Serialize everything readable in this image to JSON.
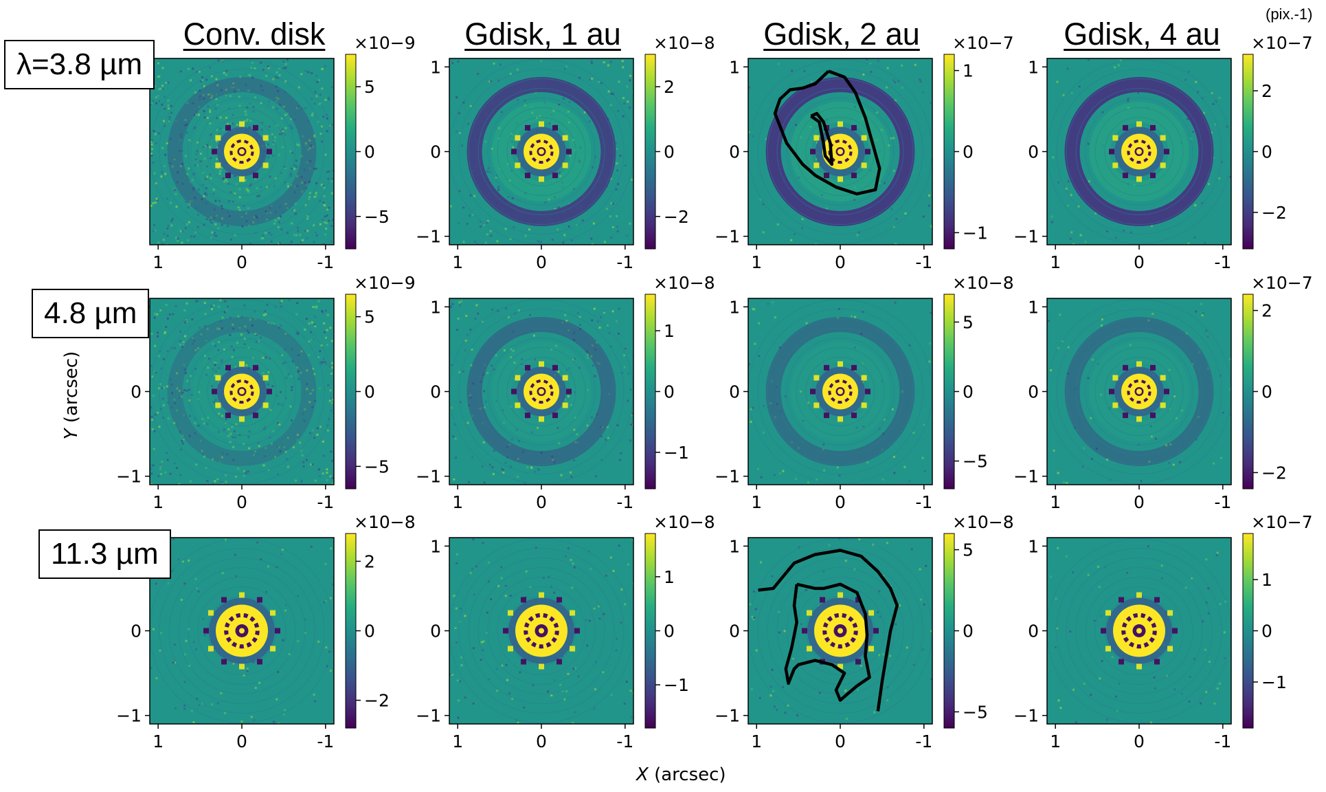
{
  "figure": {
    "unit_label": "(pix.-1)",
    "row_labels": [
      "λ=3.8 µm",
      "4.8 µm",
      "11.3 µm"
    ],
    "column_titles": [
      "Conv. disk",
      "Gdisk, 1 au",
      "Gdisk, 2 au",
      "Gdisk, 4 au"
    ],
    "xlabel_var": "X",
    "xlabel_unit": "(arcsec)",
    "ylabel_var": "Y",
    "ylabel_unit": "(arcsec)"
  },
  "colors": {
    "colormap": "viridis",
    "contour": "#000000"
  },
  "chart_data": [
    {
      "type": "heatmap",
      "row": 0,
      "col": 0,
      "xlim": [
        1.1,
        -1.1
      ],
      "ylim": [
        -1.1,
        1.1
      ],
      "x_ticks": [
        "1",
        "0",
        "-1"
      ],
      "y_ticks": [],
      "cb_exponent": "×10−9",
      "cb_ticks": [
        {
          "v": 5,
          "l": "5"
        },
        {
          "v": 0,
          "l": "0"
        },
        {
          "v": -5,
          "l": "−5"
        }
      ],
      "cb_range": [
        -7.5,
        7.5
      ],
      "ring_strength": 0.35,
      "noise": 0.9,
      "contour": false
    },
    {
      "type": "heatmap",
      "row": 0,
      "col": 1,
      "xlim": [
        1.1,
        -1.1
      ],
      "ylim": [
        -1.1,
        1.1
      ],
      "x_ticks": [
        "1",
        "0",
        "-1"
      ],
      "y_ticks": [
        "1",
        "0",
        "-1"
      ],
      "cb_exponent": "×10−8",
      "cb_ticks": [
        {
          "v": 2,
          "l": "2"
        },
        {
          "v": 0,
          "l": "0"
        },
        {
          "v": -2,
          "l": "−2"
        }
      ],
      "cb_range": [
        -3,
        3
      ],
      "ring_strength": 0.9,
      "noise": 0.35,
      "contour": false
    },
    {
      "type": "heatmap",
      "row": 0,
      "col": 2,
      "xlim": [
        1.1,
        -1.1
      ],
      "ylim": [
        -1.1,
        1.1
      ],
      "x_ticks": [
        "1",
        "0",
        "-1"
      ],
      "y_ticks": [
        "1",
        "0",
        "-1"
      ],
      "cb_exponent": "×10−7",
      "cb_ticks": [
        {
          "v": 1,
          "l": "1"
        },
        {
          "v": 0,
          "l": "0"
        },
        {
          "v": -1,
          "l": "−1"
        }
      ],
      "cb_range": [
        -1.2,
        1.2
      ],
      "ring_strength": 1.0,
      "noise": 0.15,
      "contour": true,
      "contour_paths": [
        [
          [
            0.14,
            0.95
          ],
          [
            0.3,
            0.8
          ],
          [
            0.45,
            0.75
          ],
          [
            0.6,
            0.73
          ],
          [
            0.72,
            0.62
          ],
          [
            0.78,
            0.45
          ],
          [
            0.72,
            0.3
          ],
          [
            0.64,
            0.1
          ],
          [
            0.45,
            -0.15
          ],
          [
            0.3,
            -0.28
          ],
          [
            0.05,
            -0.42
          ],
          [
            -0.2,
            -0.5
          ],
          [
            -0.42,
            -0.45
          ],
          [
            -0.47,
            -0.2
          ],
          [
            -0.4,
            0.05
          ],
          [
            -0.3,
            0.4
          ],
          [
            -0.18,
            0.7
          ],
          [
            -0.05,
            0.88
          ],
          [
            0.14,
            0.95
          ]
        ],
        [
          [
            0.35,
            0.42
          ],
          [
            0.25,
            0.35
          ],
          [
            0.2,
            0.1
          ],
          [
            0.18,
            -0.05
          ],
          [
            0.1,
            -0.15
          ],
          [
            0.12,
            0.1
          ],
          [
            0.2,
            0.35
          ],
          [
            0.28,
            0.45
          ],
          [
            0.35,
            0.42
          ]
        ]
      ]
    },
    {
      "type": "heatmap",
      "row": 0,
      "col": 3,
      "xlim": [
        1.1,
        -1.1
      ],
      "ylim": [
        -1.1,
        1.1
      ],
      "x_ticks": [
        "1",
        "0",
        "-1"
      ],
      "y_ticks": [
        "1",
        "0",
        "-1"
      ],
      "cb_exponent": "×10−7",
      "cb_ticks": [
        {
          "v": 2,
          "l": "2"
        },
        {
          "v": 0,
          "l": "0"
        },
        {
          "v": -2,
          "l": "−2"
        }
      ],
      "cb_range": [
        -3.2,
        3.2
      ],
      "ring_strength": 1.0,
      "noise": 0.12,
      "contour": false
    },
    {
      "type": "heatmap",
      "row": 1,
      "col": 0,
      "xlim": [
        1.1,
        -1.1
      ],
      "ylim": [
        -1.1,
        1.1
      ],
      "x_ticks": [
        "1",
        "0",
        "-1"
      ],
      "y_ticks": [
        "1",
        "0",
        "-1"
      ],
      "cb_exponent": "×10−9",
      "cb_ticks": [
        {
          "v": 5,
          "l": "5"
        },
        {
          "v": 0,
          "l": "0"
        },
        {
          "v": -5,
          "l": "−5"
        }
      ],
      "cb_range": [
        -6.5,
        6.5
      ],
      "ring_strength": 0.25,
      "noise": 0.7,
      "contour": false
    },
    {
      "type": "heatmap",
      "row": 1,
      "col": 1,
      "xlim": [
        1.1,
        -1.1
      ],
      "ylim": [
        -1.1,
        1.1
      ],
      "x_ticks": [
        "1",
        "0",
        "-1"
      ],
      "y_ticks": [
        "1",
        "0",
        "-1"
      ],
      "cb_exponent": "×10−8",
      "cb_ticks": [
        {
          "v": 1,
          "l": "1"
        },
        {
          "v": 0,
          "l": "0"
        },
        {
          "v": -1,
          "l": "−1"
        }
      ],
      "cb_range": [
        -1.6,
        1.6
      ],
      "ring_strength": 0.45,
      "noise": 0.3,
      "contour": false
    },
    {
      "type": "heatmap",
      "row": 1,
      "col": 2,
      "xlim": [
        1.1,
        -1.1
      ],
      "ylim": [
        -1.1,
        1.1
      ],
      "x_ticks": [
        "1",
        "0",
        "-1"
      ],
      "y_ticks": [
        "1",
        "0",
        "-1"
      ],
      "cb_exponent": "×10−8",
      "cb_ticks": [
        {
          "v": 5,
          "l": "5"
        },
        {
          "v": 0,
          "l": "0"
        },
        {
          "v": -5,
          "l": "−5"
        }
      ],
      "cb_range": [
        -7,
        7
      ],
      "ring_strength": 0.4,
      "noise": 0.12,
      "contour": false
    },
    {
      "type": "heatmap",
      "row": 1,
      "col": 3,
      "xlim": [
        1.1,
        -1.1
      ],
      "ylim": [
        -1.1,
        1.1
      ],
      "x_ticks": [
        "1",
        "0",
        "-1"
      ],
      "y_ticks": [
        "1",
        "0",
        "-1"
      ],
      "cb_exponent": "×10−7",
      "cb_ticks": [
        {
          "v": 2,
          "l": "2"
        },
        {
          "v": 0,
          "l": "0"
        },
        {
          "v": -2,
          "l": "−2"
        }
      ],
      "cb_range": [
        -2.4,
        2.4
      ],
      "ring_strength": 0.4,
      "noise": 0.1,
      "contour": false
    },
    {
      "type": "heatmap",
      "row": 2,
      "col": 0,
      "xlim": [
        1.1,
        -1.1
      ],
      "ylim": [
        -1.1,
        1.1
      ],
      "x_ticks": [
        "1",
        "0",
        "-1"
      ],
      "y_ticks": [
        "0",
        "-1"
      ],
      "cb_exponent": "×10−8",
      "cb_ticks": [
        {
          "v": 2,
          "l": "2"
        },
        {
          "v": 0,
          "l": "0"
        },
        {
          "v": -2,
          "l": "−2"
        }
      ],
      "cb_range": [
        -2.8,
        2.8
      ],
      "ring_strength": 0.0,
      "noise": 0.15,
      "contour": false
    },
    {
      "type": "heatmap",
      "row": 2,
      "col": 1,
      "xlim": [
        1.1,
        -1.1
      ],
      "ylim": [
        -1.1,
        1.1
      ],
      "x_ticks": [
        "1",
        "0",
        "-1"
      ],
      "y_ticks": [
        "1",
        "0",
        "-1"
      ],
      "cb_exponent": "×10−8",
      "cb_ticks": [
        {
          "v": 1,
          "l": "1"
        },
        {
          "v": 0,
          "l": "0"
        },
        {
          "v": -1,
          "l": "−1"
        }
      ],
      "cb_range": [
        -1.8,
        1.8
      ],
      "ring_strength": 0.0,
      "noise": 0.18,
      "contour": false
    },
    {
      "type": "heatmap",
      "row": 2,
      "col": 2,
      "xlim": [
        1.1,
        -1.1
      ],
      "ylim": [
        -1.1,
        1.1
      ],
      "x_ticks": [
        "1",
        "0",
        "-1"
      ],
      "y_ticks": [
        "1",
        "0",
        "-1"
      ],
      "cb_exponent": "×10−8",
      "cb_ticks": [
        {
          "v": 5,
          "l": "5"
        },
        {
          "v": 0,
          "l": "0"
        },
        {
          "v": -5,
          "l": "−5"
        }
      ],
      "cb_range": [
        -6,
        6
      ],
      "ring_strength": 0.0,
      "noise": 0.12,
      "contour": true,
      "contour_paths": [
        [
          [
            0.98,
            0.48
          ],
          [
            0.8,
            0.5
          ],
          [
            0.7,
            0.62
          ],
          [
            0.55,
            0.8
          ],
          [
            0.3,
            0.9
          ],
          [
            0.0,
            0.95
          ],
          [
            -0.25,
            0.88
          ],
          [
            -0.45,
            0.7
          ],
          [
            -0.6,
            0.5
          ],
          [
            -0.68,
            0.3
          ],
          [
            -0.6,
            0.0
          ],
          [
            -0.55,
            -0.3
          ],
          [
            -0.5,
            -0.6
          ],
          [
            -0.45,
            -0.95
          ]
        ],
        [
          [
            0.52,
            0.55
          ],
          [
            0.3,
            0.5
          ],
          [
            0.2,
            0.5
          ],
          [
            0.0,
            0.55
          ],
          [
            -0.2,
            0.45
          ],
          [
            -0.3,
            0.2
          ],
          [
            -0.32,
            -0.05
          ],
          [
            -0.3,
            -0.3
          ],
          [
            -0.35,
            -0.55
          ],
          [
            -0.2,
            -0.65
          ],
          [
            0.0,
            -0.82
          ],
          [
            0.05,
            -0.7
          ],
          [
            -0.05,
            -0.5
          ],
          [
            0.1,
            -0.4
          ],
          [
            0.3,
            -0.35
          ],
          [
            0.5,
            -0.4
          ],
          [
            0.55,
            -0.45
          ],
          [
            0.62,
            -0.62
          ],
          [
            0.65,
            -0.45
          ],
          [
            0.58,
            -0.2
          ],
          [
            0.52,
            0.1
          ],
          [
            0.55,
            0.3
          ],
          [
            0.52,
            0.55
          ]
        ]
      ]
    },
    {
      "type": "heatmap",
      "row": 2,
      "col": 3,
      "xlim": [
        1.1,
        -1.1
      ],
      "ylim": [
        -1.1,
        1.1
      ],
      "x_ticks": [
        "1",
        "0",
        "-1"
      ],
      "y_ticks": [
        "1",
        "0",
        "-1"
      ],
      "cb_exponent": "×10−7",
      "cb_ticks": [
        {
          "v": 1,
          "l": "1"
        },
        {
          "v": 0,
          "l": "0"
        },
        {
          "v": -1,
          "l": "−1"
        }
      ],
      "cb_range": [
        -1.9,
        1.9
      ],
      "ring_strength": 0.0,
      "noise": 0.1,
      "contour": false
    }
  ]
}
